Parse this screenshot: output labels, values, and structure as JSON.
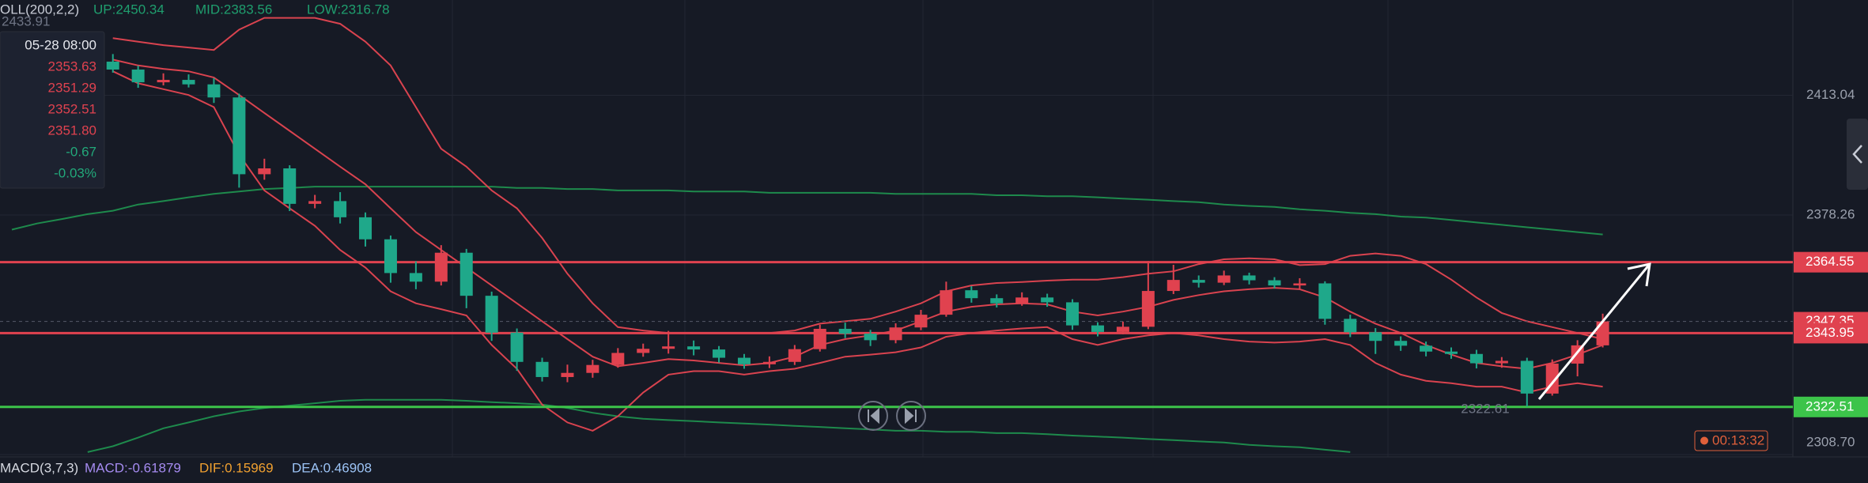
{
  "chart_data": {
    "type": "candlestick",
    "header": {
      "indicator": "OLL(200,2,2)",
      "up": "UP:2450.34",
      "mid": "MID:2383.56",
      "low": "LOW:2316.78",
      "color": "#1f9e6e"
    },
    "tooltip": {
      "price": "2433.91",
      "time": "05-28 08:00",
      "rows": [
        {
          "text": "2353.63",
          "color": "#e0424f"
        },
        {
          "text": "2351.29",
          "color": "#e0424f"
        },
        {
          "text": "2352.51",
          "color": "#e0424f"
        },
        {
          "text": "2351.80",
          "color": "#e0424f"
        },
        {
          "text": "-0.67",
          "color": "#22a87a"
        },
        {
          "text": "-0.03%",
          "color": "#22a87a"
        }
      ]
    },
    "up_color": "#e0424f",
    "down_color": "#1fa88a",
    "open": [
      null,
      null,
      null,
      null,
      2422.8,
      2420.5,
      2416.8,
      2417.5,
      2416.2,
      2412.4,
      2390.1,
      2391.8,
      2381.5,
      2382.3,
      2377.6,
      2371.2,
      2361.4,
      2358.9,
      2367.3,
      2354.8,
      2344.1,
      2335.6,
      2331.2,
      2332.4,
      2334.7,
      2338.2,
      2339.4,
      2340.1,
      2339.2,
      2336.8,
      2334.9,
      2335.6,
      2339.3,
      2345.2,
      2343.8,
      2341.9,
      2345.6,
      2349.3,
      2356.4,
      2354.1,
      2352.6,
      2354.3,
      2352.9,
      2346.2,
      2344.3,
      2345.8,
      2356.2,
      2359.4,
      2358.6,
      2360.7,
      2359.3,
      2357.8,
      2358.4,
      2348.1,
      2344.2,
      2341.7,
      2340.3,
      2338.6,
      2337.9,
      2335.2,
      2335.9,
      2326.4,
      2335.1,
      2340.4
    ],
    "high": [
      null,
      null,
      null,
      null,
      2425.0,
      2421.6,
      2419.4,
      2419.1,
      2418.0,
      2413.5,
      2394.6,
      2392.7,
      2384.1,
      2384.9,
      2379.0,
      2372.3,
      2364.8,
      2369.5,
      2368.4,
      2356.0,
      2345.3,
      2336.8,
      2334.8,
      2336.2,
      2339.6,
      2340.9,
      2344.6,
      2341.8,
      2340.2,
      2337.9,
      2337.2,
      2340.5,
      2346.4,
      2347.0,
      2344.9,
      2346.8,
      2350.7,
      2358.9,
      2357.6,
      2355.2,
      2355.8,
      2355.4,
      2353.8,
      2347.1,
      2347.3,
      2364.9,
      2363.8,
      2360.7,
      2362.1,
      2361.5,
      2360.2,
      2359.9,
      2359.0,
      2349.3,
      2345.4,
      2343.0,
      2341.5,
      2339.8,
      2339.1,
      2337.0,
      2336.8,
      2336.3,
      2341.9,
      2349.6
    ],
    "low": [
      null,
      null,
      null,
      null,
      2419.6,
      2415.2,
      2415.9,
      2415.3,
      2410.8,
      2386.2,
      2388.5,
      2379.4,
      2380.2,
      2375.8,
      2369.1,
      2358.6,
      2356.7,
      2357.8,
      2351.2,
      2341.7,
      2333.0,
      2329.9,
      2329.7,
      2331.0,
      2333.9,
      2337.1,
      2338.0,
      2337.5,
      2335.4,
      2333.6,
      2333.8,
      2334.7,
      2338.6,
      2342.5,
      2340.2,
      2341.0,
      2344.8,
      2348.7,
      2352.8,
      2351.4,
      2351.9,
      2351.6,
      2344.9,
      2343.0,
      2343.6,
      2345.1,
      2355.3,
      2357.2,
      2357.9,
      2358.1,
      2356.9,
      2356.6,
      2346.4,
      2342.8,
      2337.9,
      2338.8,
      2337.2,
      2336.5,
      2333.7,
      2333.9,
      2322.61,
      2325.8,
      2331.4,
      2339.8
    ],
    "close": [
      null,
      null,
      null,
      null,
      2420.5,
      2416.8,
      2417.5,
      2416.2,
      2412.4,
      2390.1,
      2391.8,
      2381.5,
      2382.3,
      2377.6,
      2371.2,
      2361.4,
      2358.9,
      2367.3,
      2354.8,
      2344.1,
      2335.6,
      2331.2,
      2332.4,
      2334.7,
      2338.2,
      2339.4,
      2340.1,
      2339.2,
      2336.8,
      2334.9,
      2335.6,
      2339.3,
      2345.2,
      2343.8,
      2341.9,
      2345.6,
      2349.3,
      2356.4,
      2354.1,
      2352.6,
      2354.3,
      2352.9,
      2346.2,
      2344.3,
      2345.8,
      2356.2,
      2359.4,
      2358.6,
      2360.7,
      2359.3,
      2357.8,
      2358.4,
      2348.1,
      2344.2,
      2341.7,
      2340.3,
      2338.6,
      2337.9,
      2335.2,
      2335.9,
      2326.4,
      2335.1,
      2340.4,
      2347.35
    ],
    "overlays": [
      {
        "color": "#1e8a4c",
        "values": [
          2374.0,
          2375.8,
          2377.1,
          2378.5,
          2379.5,
          2381.3,
          2382.3,
          2383.4,
          2384.4,
          2385.1,
          2385.8,
          2386.1,
          2386.5,
          2386.5,
          2386.5,
          2386.5,
          2386.5,
          2386.5,
          2386.5,
          2386.5,
          2386.1,
          2386.1,
          2385.8,
          2385.8,
          2385.4,
          2385.4,
          2385.4,
          2385.1,
          2385.1,
          2385.1,
          2384.7,
          2384.7,
          2384.7,
          2384.7,
          2384.7,
          2384.4,
          2384.4,
          2384.4,
          2384.4,
          2384.0,
          2384.0,
          2383.7,
          2383.7,
          2383.4,
          2383.0,
          2382.7,
          2382.3,
          2382.0,
          2381.3,
          2380.9,
          2380.6,
          2379.9,
          2379.5,
          2378.9,
          2378.5,
          2377.8,
          2377.5,
          2376.8,
          2376.1,
          2375.4,
          2374.7,
          2374.0,
          2373.3,
          2372.6
        ]
      },
      {
        "color": "#1e8a4c",
        "values": [
          null,
          null,
          null,
          2309.4,
          2311.1,
          2313.6,
          2316.3,
          2318.0,
          2319.8,
          2321.2,
          2322.2,
          2322.9,
          2323.6,
          2324.3,
          2324.6,
          2324.6,
          2324.6,
          2324.6,
          2324.3,
          2323.9,
          2323.6,
          2323.2,
          2322.2,
          2320.8,
          2319.8,
          2319.1,
          2318.7,
          2318.4,
          2318.0,
          2317.7,
          2317.4,
          2317.0,
          2316.7,
          2316.3,
          2316.0,
          2315.6,
          2315.6,
          2315.3,
          2315.3,
          2314.9,
          2314.9,
          2314.6,
          2314.2,
          2313.9,
          2313.6,
          2313.2,
          2312.9,
          2312.5,
          2312.2,
          2311.5,
          2311.1,
          2310.8,
          2310.1,
          2309.4,
          null,
          null,
          null,
          null,
          null,
          null,
          null,
          null,
          null,
          null
        ]
      },
      {
        "color": "#d9434f",
        "values": [
          null,
          null,
          null,
          null,
          2429.6,
          2428.6,
          2427.6,
          2426.9,
          2426.2,
          2432.1,
          2435.5,
          2435.5,
          2435.5,
          2433.8,
          2428.6,
          2421.7,
          2409.6,
          2397.5,
          2392.3,
          2385.4,
          2380.2,
          2371.6,
          2361.2,
          2352.6,
          2345.7,
          2344.7,
          2344.0,
          2344.0,
          2344.0,
          2344.0,
          2344.0,
          2344.7,
          2346.7,
          2347.4,
          2348.1,
          2350.2,
          2352.6,
          2356.1,
          2357.8,
          2358.5,
          2358.8,
          2359.2,
          2359.5,
          2359.5,
          2360.2,
          2361.2,
          2361.9,
          2364.0,
          2365.4,
          2365.7,
          2365.4,
          2363.7,
          2364.0,
          2366.4,
          2367.1,
          2366.4,
          2364.0,
          2359.5,
          2354.3,
          2349.8,
          2347.4,
          2345.7,
          2344.0,
          2342.2
        ]
      },
      {
        "color": "#d9434f",
        "values": [
          null,
          null,
          null,
          null,
          2423.4,
          2421.7,
          2420.7,
          2420.0,
          2418.2,
          2413.1,
          2407.9,
          2402.7,
          2397.5,
          2392.3,
          2387.2,
          2380.2,
          2373.3,
          2368.1,
          2363.0,
          2357.8,
          2352.6,
          2347.4,
          2342.2,
          2337.1,
          2334.3,
          2335.3,
          2336.4,
          2336.0,
          2335.3,
          2334.6,
          2335.3,
          2337.1,
          2340.5,
          2342.2,
          2343.3,
          2344.7,
          2347.4,
          2350.2,
          2351.6,
          2352.3,
          2352.6,
          2352.3,
          2350.2,
          2349.1,
          2350.2,
          2351.6,
          2353.6,
          2355.0,
          2356.1,
          2356.7,
          2357.1,
          2356.7,
          2354.3,
          2350.2,
          2346.7,
          2344.0,
          2340.5,
          2337.7,
          2335.3,
          2334.3,
          2333.6,
          2335.3,
          2337.7,
          2340.5
        ]
      },
      {
        "color": "#d9434f",
        "values": [
          null,
          null,
          null,
          null,
          2420.0,
          2416.5,
          2414.8,
          2413.1,
          2409.6,
          2395.8,
          2385.4,
          2380.2,
          2375.1,
          2368.1,
          2363.0,
          2356.1,
          2352.6,
          2350.9,
          2349.1,
          2340.5,
          2333.6,
          2323.2,
          2318.0,
          2315.6,
          2319.8,
          2326.7,
          2331.9,
          2332.9,
          2332.9,
          2331.9,
          2332.9,
          2333.6,
          2335.3,
          2337.1,
          2337.7,
          2338.4,
          2339.8,
          2342.9,
          2344.0,
          2344.7,
          2345.3,
          2345.7,
          2342.2,
          2340.5,
          2342.2,
          2343.3,
          2344.0,
          2343.3,
          2342.2,
          2341.5,
          2341.2,
          2341.5,
          2342.2,
          2340.5,
          2335.3,
          2331.9,
          2330.1,
          2329.4,
          2328.4,
          2328.4,
          2326.7,
          2328.4,
          2329.4,
          2328.4
        ]
      }
    ],
    "ylim": [
      2308.0,
      2440.7
    ],
    "yticks": [
      2413.04,
      2378.26,
      {
        "value": 2308.7,
        "label": "2308.70"
      }
    ],
    "grid": true,
    "levels": [
      {
        "value": 2364.55,
        "color": "#e0424f"
      },
      {
        "value": 2343.95,
        "color": "#e0424f"
      },
      {
        "value": 2322.51,
        "color": "#3cc44a"
      }
    ],
    "last_price": 2347.35,
    "low_label": "2322.61",
    "timer": "00:13:32",
    "macd": {
      "title": "MACD(3,7,3)",
      "macd": "MACD:-0.61879",
      "dif": "DIF:0.15969",
      "dea": "DEA:0.46908",
      "colors": {
        "title": "#d5d8e0",
        "macd": "#a58bf0",
        "dif": "#f0a030",
        "dea": "#9cc3f5"
      }
    }
  }
}
